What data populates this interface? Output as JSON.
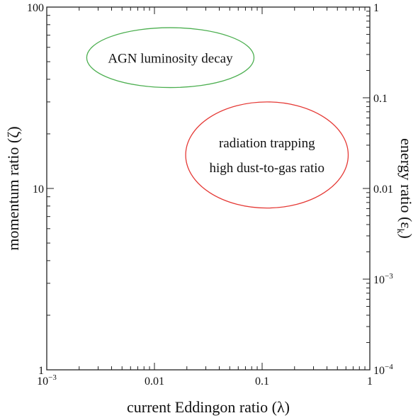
{
  "chart_data": {
    "type": "scatter",
    "title": "",
    "xlabel": "current Eddingon ratio (λ)",
    "ylabel": "momentum ratio (ζ)",
    "y2label": "energy ratio (εk)",
    "xscale": "log",
    "yscale": "log",
    "y2scale": "log",
    "xlim": [
      0.001,
      1
    ],
    "ylim": [
      1,
      100
    ],
    "y2lim": [
      0.0001,
      1
    ],
    "grid": false,
    "x_ticks": [
      {
        "value": 0.001,
        "base": "10",
        "exp": "−3"
      },
      {
        "value": 0.01,
        "base": "0.01",
        "exp": ""
      },
      {
        "value": 0.1,
        "base": "0.1",
        "exp": ""
      },
      {
        "value": 1,
        "base": "1",
        "exp": ""
      }
    ],
    "y_ticks": [
      {
        "value": 1,
        "label": "1"
      },
      {
        "value": 10,
        "label": "10"
      },
      {
        "value": 100,
        "label": "100"
      }
    ],
    "y2_ticks": [
      {
        "value": 0.0001,
        "base": "10",
        "exp": "−4"
      },
      {
        "value": 0.001,
        "base": "10",
        "exp": "−3"
      },
      {
        "value": 0.01,
        "base": "0.01",
        "exp": ""
      },
      {
        "value": 0.1,
        "base": "0.1",
        "exp": ""
      },
      {
        "value": 1,
        "base": "1",
        "exp": ""
      }
    ],
    "regions": [
      {
        "name": "AGN luminosity decay",
        "lines": [
          "AGN luminosity decay"
        ],
        "color": "#4caf50",
        "x_range": [
          0.00235,
          0.084
        ],
        "y_range": [
          36,
          77
        ]
      },
      {
        "name": "radiation trapping / high dust-to-gas ratio",
        "lines": [
          "radiation trapping",
          "high dust-to-gas ratio"
        ],
        "color": "#e53935",
        "x_range": [
          0.0195,
          0.63
        ],
        "y_range": [
          7.8,
          30
        ]
      }
    ]
  }
}
